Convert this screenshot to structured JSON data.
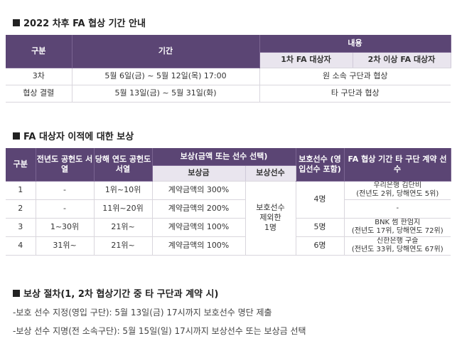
{
  "section1": {
    "title": "2022 차후 FA 협상 기간 안내",
    "headers": {
      "category": "구분",
      "period": "기간",
      "content": "내용",
      "first_fa": "1차 FA 대상자",
      "second_fa": "2차 이상 FA 대상자"
    },
    "rows": [
      {
        "category": "3차",
        "period": "5월 6일(금) ~ 5월 12일(목) 17:00",
        "content": "원 소속 구단과 협상"
      },
      {
        "category": "협상 결렬",
        "period": "5월 13일(금) ~ 5월 31일(화)",
        "content": "타 구단과 협상"
      }
    ]
  },
  "section2": {
    "title": "FA 대상자 이적에 대한 보상",
    "headers": {
      "category": "구분",
      "prev_rank": "전년도 공헌도 서열",
      "curr_rank": "당해 연도 공헌도 서열",
      "compensation": "보상(금액 또는 선수 선택)",
      "comp_money": "보상금",
      "comp_player": "보상선수",
      "protected": "보호선수 (영입선수 포함)",
      "contract": "FA 협상 기간 타 구단 계약 선수"
    },
    "rows": [
      {
        "category": "1",
        "prev": "-",
        "curr": "1위~10위",
        "money": "계약금액의 300%",
        "contract_line1": "우리은행 김단비",
        "contract_line2": "(전년도 2위, 당해연도 5위)"
      },
      {
        "category": "2",
        "prev": "-",
        "curr": "11위~20위",
        "money": "계약금액의 200%",
        "contract_line1": "-",
        "contract_line2": ""
      },
      {
        "category": "3",
        "prev": "1~30위",
        "curr": "21위~",
        "money": "계약금액의 100%",
        "contract_line1": "BNK 썸 한엄지",
        "contract_line2": "(전년도 17위, 당해연도 72위)"
      },
      {
        "category": "4",
        "prev": "31위~",
        "curr": "21위~",
        "money": "계약금액의 100%",
        "contract_line1": "신한은행 구슬",
        "contract_line2": "(전년도 33위, 당해연도 67위)"
      }
    ],
    "comp_player_line1": "보호선수",
    "comp_player_line2": "제외한",
    "comp_player_line3": "1명",
    "protected_a": "4명",
    "protected_b": "5명",
    "protected_c": "6명"
  },
  "section3": {
    "title": "보상 절차(1, 2차 협상기간 중 타 구단과 계약 시)",
    "lines": [
      "-보호 선수 지정(영입 구단): 5월 13일(금) 17시까지 보호선수 명단 제출",
      "-보상 선수 지명(전 소속구단): 5월 15일(일) 17시까지 보상선수 또는 보상금 선택"
    ]
  }
}
